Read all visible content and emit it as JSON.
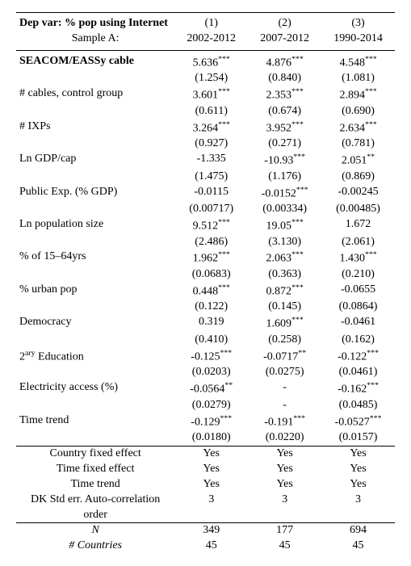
{
  "header": {
    "depvar_label": "Dep var: % pop using Internet",
    "sample_label": "Sample A:",
    "colnums": [
      "(1)",
      "(2)",
      "(3)"
    ],
    "periods": [
      "2002-2012",
      "2007-2012",
      "1990-2014"
    ]
  },
  "rows": [
    {
      "label": "SEACOM/EASSy cable",
      "bold": true,
      "coef": [
        "5.636",
        "4.876",
        "4.548"
      ],
      "stars": [
        "***",
        "***",
        "***"
      ],
      "se": [
        "(1.254)",
        "(0.840)",
        "(1.081)"
      ]
    },
    {
      "label": "# cables, control group",
      "coef": [
        "3.601",
        "2.353",
        "2.894"
      ],
      "stars": [
        "***",
        "***",
        "***"
      ],
      "se": [
        "(0.611)",
        "(0.674)",
        "(0.690)"
      ]
    },
    {
      "label": "# IXPs",
      "coef": [
        "3.264",
        "3.952",
        "2.634"
      ],
      "stars": [
        "***",
        "***",
        "***"
      ],
      "se": [
        "(0.927)",
        "(0.271)",
        "(0.781)"
      ]
    },
    {
      "label": "Ln GDP/cap",
      "coef": [
        "-1.335",
        "-10.93",
        "2.051"
      ],
      "stars": [
        "",
        "***",
        "**"
      ],
      "se": [
        "(1.475)",
        "(1.176)",
        "(0.869)"
      ]
    },
    {
      "label": "Public Exp. (% GDP)",
      "coef": [
        "-0.0115",
        "-0.0152",
        "-0.00245"
      ],
      "stars": [
        "",
        "***",
        ""
      ],
      "se": [
        "(0.00717)",
        "(0.00334)",
        "(0.00485)"
      ]
    },
    {
      "label": "Ln population size",
      "coef": [
        "9.512",
        "19.05",
        "1.672"
      ],
      "stars": [
        "***",
        "***",
        ""
      ],
      "se": [
        "(2.486)",
        "(3.130)",
        "(2.061)"
      ]
    },
    {
      "label": "% of 15–64yrs",
      "coef": [
        "1.962",
        "2.063",
        "1.430"
      ],
      "stars": [
        "***",
        "***",
        "***"
      ],
      "se": [
        "(0.0683)",
        "(0.363)",
        "(0.210)"
      ]
    },
    {
      "label": "% urban pop",
      "coef": [
        "0.448",
        "0.872",
        "-0.0655"
      ],
      "stars": [
        "***",
        "***",
        ""
      ],
      "se": [
        "(0.122)",
        "(0.145)",
        "(0.0864)"
      ]
    },
    {
      "label": "Democracy",
      "coef": [
        "0.319",
        "1.609",
        "-0.0461"
      ],
      "stars": [
        "",
        "***",
        ""
      ],
      "se": [
        "(0.410)",
        "(0.258)",
        "(0.162)"
      ]
    },
    {
      "label": "2ary Education",
      "sup": "ary",
      "coef": [
        "-0.125",
        "-0.0717",
        "-0.122"
      ],
      "stars": [
        "***",
        "**",
        "***"
      ],
      "se": [
        "(0.0203)",
        "(0.0275)",
        "(0.0461)"
      ]
    },
    {
      "label": "Electricity access (%)",
      "coef": [
        "-0.0564",
        "-",
        "-0.162"
      ],
      "stars": [
        "**",
        "",
        "***"
      ],
      "se": [
        "(0.0279)",
        "-",
        "(0.0485)"
      ]
    },
    {
      "label": "Time trend",
      "coef": [
        "-0.129",
        "-0.191",
        "-0.0527"
      ],
      "stars": [
        "***",
        "***",
        "***"
      ],
      "se": [
        "(0.0180)",
        "(0.0220)",
        "(0.0157)"
      ]
    }
  ],
  "footer": {
    "lines": [
      {
        "label": "Country fixed effect",
        "vals": [
          "Yes",
          "Yes",
          "Yes"
        ]
      },
      {
        "label": "Time fixed effect",
        "vals": [
          "Yes",
          "Yes",
          "Yes"
        ]
      },
      {
        "label": "Time trend",
        "vals": [
          "Yes",
          "Yes",
          "Yes"
        ]
      },
      {
        "label": "DK Std err. Auto-correlation order",
        "vals": [
          "3",
          "3",
          "3"
        ]
      }
    ],
    "nrow": {
      "label": "N",
      "vals": [
        "349",
        "177",
        "694"
      ]
    },
    "crow": {
      "label": "# Countries",
      "vals": [
        "45",
        "45",
        "45"
      ]
    }
  }
}
